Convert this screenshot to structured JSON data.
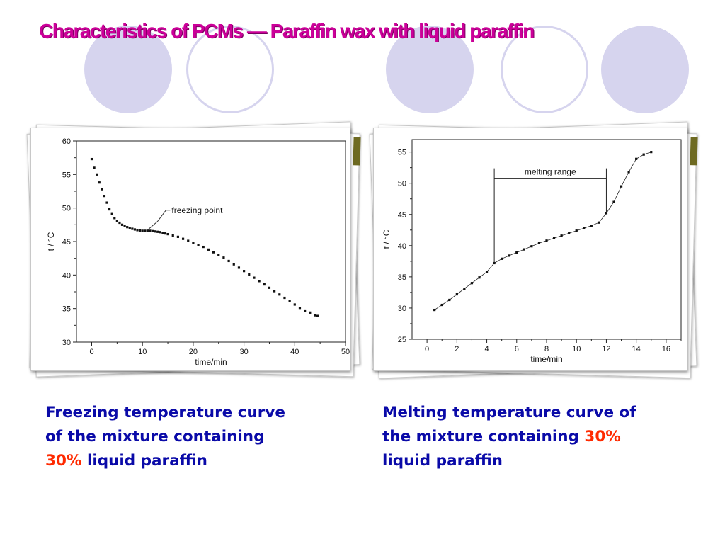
{
  "slide": {
    "title": "Characteristics of PCMs — Paraffin wax with liquid paraffin",
    "captions": [
      {
        "before": "Freezing temperature curve of the mixture containing ",
        "highlight": "30%",
        "after": " liquid paraffin"
      },
      {
        "before": "Melting temperature curve of the mixture containing ",
        "highlight": "30%",
        "after": " liquid paraffin"
      }
    ],
    "colors": {
      "title": "#cc0099",
      "caption": "#0a0aa8",
      "highlight": "#ff2a00",
      "deco": "#d6d4ee"
    }
  },
  "chart_data": [
    {
      "type": "scatter",
      "xlabel": "time/min",
      "ylabel": "t / °C",
      "xlim": [
        -3,
        50
      ],
      "ylim": [
        30,
        60
      ],
      "xticks": [
        0,
        10,
        20,
        30,
        40,
        50
      ],
      "yticks": [
        30,
        35,
        40,
        45,
        50,
        55,
        60
      ],
      "annotations": [
        {
          "text": "freezing point",
          "x": 11,
          "y": 46.5
        }
      ],
      "series": [
        {
          "marker": "square",
          "x": [
            0,
            0.5,
            1,
            1.5,
            2,
            2.5,
            3,
            3.5,
            4,
            4.5,
            5,
            5.5,
            6,
            6.5,
            7,
            7.5,
            8,
            8.5,
            9,
            9.5,
            10,
            10.5,
            11,
            11.5,
            12,
            12.5,
            13,
            13.5,
            14,
            14.5,
            15,
            16,
            17,
            18,
            19,
            20,
            21,
            22,
            23,
            24,
            25,
            26,
            27,
            28,
            29,
            30,
            31,
            32,
            33,
            34,
            35,
            36,
            37,
            38,
            39,
            40,
            41,
            42,
            43,
            44,
            44.5
          ],
          "y": [
            57.3,
            56,
            55,
            53.8,
            52.8,
            51.8,
            50.8,
            49.8,
            49.1,
            48.5,
            48.1,
            47.8,
            47.5,
            47.3,
            47.15,
            47.0,
            46.9,
            46.8,
            46.7,
            46.65,
            46.6,
            46.6,
            46.6,
            46.6,
            46.55,
            46.5,
            46.45,
            46.4,
            46.3,
            46.2,
            46.1,
            45.9,
            45.7,
            45.4,
            45.1,
            44.8,
            44.5,
            44.2,
            43.8,
            43.4,
            43.0,
            42.6,
            42.1,
            41.6,
            41.1,
            40.6,
            40.1,
            39.6,
            39.1,
            38.6,
            38.1,
            37.6,
            37.1,
            36.6,
            36.1,
            35.6,
            35.1,
            34.7,
            34.4,
            34.0,
            33.9
          ]
        }
      ]
    },
    {
      "type": "line",
      "xlabel": "time/min",
      "ylabel": "t / °C",
      "xlim": [
        -1,
        17
      ],
      "ylim": [
        25,
        57
      ],
      "xticks": [
        0,
        2,
        4,
        6,
        8,
        10,
        12,
        14,
        16
      ],
      "yticks": [
        25,
        30,
        35,
        40,
        45,
        50,
        55
      ],
      "annotations": [
        {
          "text": "melting range",
          "x_start": 4.5,
          "x_end": 12
        }
      ],
      "series": [
        {
          "marker": "square",
          "x": [
            0.5,
            1,
            1.5,
            2,
            2.5,
            3,
            3.5,
            4,
            4.5,
            5,
            5.5,
            6,
            6.5,
            7,
            7.5,
            8,
            8.5,
            9,
            9.5,
            10,
            10.5,
            11,
            11.5,
            12,
            12.5,
            13,
            13.5,
            14,
            14.5,
            15
          ],
          "y": [
            29.7,
            30.5,
            31.3,
            32.2,
            33.1,
            34.0,
            34.9,
            35.8,
            37.2,
            37.9,
            38.4,
            38.9,
            39.4,
            39.9,
            40.4,
            40.8,
            41.2,
            41.6,
            42.0,
            42.4,
            42.8,
            43.2,
            43.7,
            45.2,
            47.0,
            49.5,
            51.8,
            53.9,
            54.6,
            55.0
          ]
        }
      ]
    }
  ]
}
